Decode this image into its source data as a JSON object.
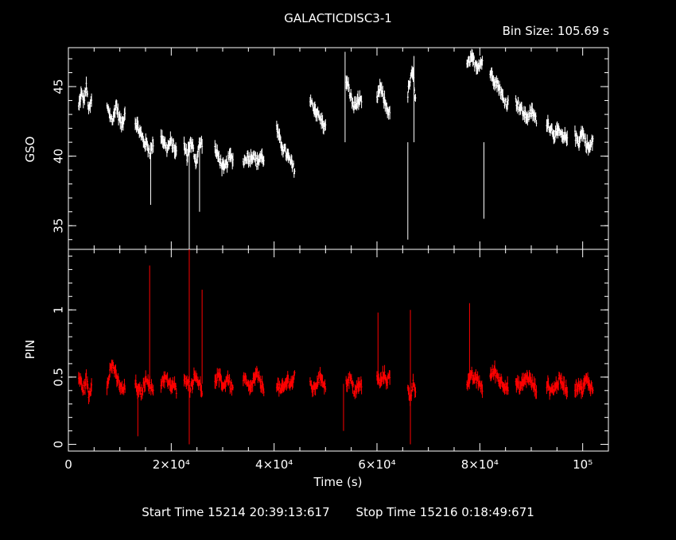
{
  "title": "GALACTICDISC3-1",
  "bin_size": "Bin Size: 105.69 s",
  "footer": {
    "start": "Start Time 15214 20:39:13:617",
    "stop": "Stop Time 15216  0:18:49:671"
  },
  "colors": {
    "background": "#000000",
    "axes": "#ffffff",
    "gso": "#ffffff",
    "pin": "#ff0000"
  },
  "chart_data": [
    {
      "panel": "top",
      "type": "scatter",
      "ylabel": "GSO",
      "xlim": [
        0,
        105000
      ],
      "ylim": [
        33.3,
        47.8
      ],
      "yticks": [
        35,
        40,
        45
      ],
      "color": "#ffffff",
      "error_bars": true,
      "segments": [
        {
          "x0": 2000,
          "x1": 4500,
          "y": [
            43.5,
            44.5,
            44.0,
            45.0,
            43.2,
            44.0
          ]
        },
        {
          "x0": 7500,
          "x1": 11000,
          "y": [
            43.5,
            43.0,
            42.5,
            43.8,
            42.8,
            42.2,
            43.2
          ]
        },
        {
          "x0": 13000,
          "x1": 16500,
          "y": [
            42.5,
            42.0,
            41.5,
            41.0,
            40.8,
            40.2,
            41.0
          ]
        },
        {
          "x0": 18000,
          "x1": 21000,
          "y": [
            41.5,
            41.0,
            40.5,
            41.0,
            40.8,
            40.2
          ]
        },
        {
          "x0": 22500,
          "x1": 26000,
          "y": [
            40.8,
            40.0,
            41.0,
            40.5,
            39.5,
            40.8,
            41.0
          ]
        },
        {
          "x0": 28500,
          "x1": 32000,
          "y": [
            40.5,
            40.0,
            39.5,
            39.0,
            39.5,
            40.0,
            39.8
          ]
        },
        {
          "x0": 34000,
          "x1": 38000,
          "y": [
            39.5,
            40.0,
            39.8,
            40.2,
            39.5,
            40.0,
            39.8
          ]
        },
        {
          "x0": 40500,
          "x1": 44000,
          "y": [
            42.0,
            41.0,
            40.5,
            40.0,
            39.5,
            39.0
          ]
        },
        {
          "x0": 47000,
          "x1": 50000,
          "y": [
            44.0,
            43.5,
            43.0,
            42.5,
            42.0
          ]
        },
        {
          "x0": 54000,
          "x1": 57000,
          "y": [
            45.5,
            44.5,
            43.5,
            44.0,
            43.8
          ]
        },
        {
          "x0": 60000,
          "x1": 62500,
          "y": [
            44.0,
            45.0,
            44.2,
            43.5,
            43.0
          ]
        },
        {
          "x0": 66000,
          "x1": 67500,
          "y": [
            44.5,
            45.5,
            46.0,
            44.0
          ]
        },
        {
          "x0": 77500,
          "x1": 80500,
          "y": [
            46.5,
            47.0,
            46.5,
            46.8
          ]
        },
        {
          "x0": 82000,
          "x1": 85500,
          "y": [
            46.0,
            45.5,
            45.0,
            44.0,
            43.8
          ]
        },
        {
          "x0": 87000,
          "x1": 91000,
          "y": [
            44.0,
            43.5,
            43.0,
            42.8,
            43.2,
            42.5
          ]
        },
        {
          "x0": 93000,
          "x1": 97000,
          "y": [
            42.5,
            42.0,
            41.5,
            41.8,
            41.2,
            41.5
          ]
        },
        {
          "x0": 98500,
          "x1": 102000,
          "y": [
            41.5,
            41.0,
            41.8,
            41.0,
            40.5,
            41.2
          ]
        }
      ],
      "spikes": [
        {
          "x": 16000,
          "y_low": 36.5
        },
        {
          "x": 23500,
          "y_low": 33.3
        },
        {
          "x": 25500,
          "y_low": 36.0
        },
        {
          "x": 66000,
          "y_low": 34.0
        },
        {
          "x": 80800,
          "y_low": 35.5
        },
        {
          "x": 53800,
          "y_high": 47.5
        },
        {
          "x": 67200,
          "y_high": 47.2
        }
      ]
    },
    {
      "panel": "bottom",
      "type": "scatter",
      "ylabel": "PIN",
      "xlabel": "Time (s)",
      "xlim": [
        0,
        105000
      ],
      "ylim": [
        -0.05,
        1.45
      ],
      "yticks": [
        0,
        0.5,
        1
      ],
      "ytick_labels": [
        "0",
        "0.5",
        "1"
      ],
      "xticks": [
        20000,
        40000,
        60000,
        80000,
        100000
      ],
      "xtick_labels": [
        "2×10⁴",
        "4×10⁴",
        "6×10⁴",
        "8×10⁴",
        "10⁵"
      ],
      "color": "#ff0000",
      "error_bars": true,
      "segments": [
        {
          "x0": 2000,
          "x1": 4500,
          "y": [
            0.5,
            0.45,
            0.4,
            0.5,
            0.35,
            0.45
          ]
        },
        {
          "x0": 7500,
          "x1": 11000,
          "y": [
            0.45,
            0.55,
            0.6,
            0.5,
            0.45,
            0.4,
            0.42
          ]
        },
        {
          "x0": 13000,
          "x1": 16500,
          "y": [
            0.45,
            0.4,
            0.38,
            0.45,
            0.5,
            0.42,
            0.4
          ]
        },
        {
          "x0": 18000,
          "x1": 21000,
          "y": [
            0.45,
            0.5,
            0.48,
            0.42,
            0.45,
            0.4
          ]
        },
        {
          "x0": 22500,
          "x1": 26000,
          "y": [
            0.45,
            0.5,
            0.42,
            0.48,
            0.52,
            0.45,
            0.4
          ]
        },
        {
          "x0": 28500,
          "x1": 32000,
          "y": [
            0.45,
            0.5,
            0.48,
            0.42,
            0.5,
            0.45,
            0.4
          ]
        },
        {
          "x0": 34000,
          "x1": 38000,
          "y": [
            0.5,
            0.45,
            0.4,
            0.48,
            0.52,
            0.45,
            0.42
          ]
        },
        {
          "x0": 40500,
          "x1": 44000,
          "y": [
            0.45,
            0.4,
            0.42,
            0.48,
            0.45,
            0.5
          ]
        },
        {
          "x0": 47000,
          "x1": 50000,
          "y": [
            0.45,
            0.4,
            0.48,
            0.5,
            0.42
          ]
        },
        {
          "x0": 54000,
          "x1": 57000,
          "y": [
            0.45,
            0.5,
            0.4,
            0.42,
            0.45
          ]
        },
        {
          "x0": 60000,
          "x1": 62500,
          "y": [
            0.5,
            0.45,
            0.52,
            0.48,
            0.5
          ]
        },
        {
          "x0": 66000,
          "x1": 67500,
          "y": [
            0.4,
            0.35,
            0.45,
            0.42
          ]
        },
        {
          "x0": 77500,
          "x1": 80500,
          "y": [
            0.45,
            0.5,
            0.48,
            0.42
          ]
        },
        {
          "x0": 82000,
          "x1": 85500,
          "y": [
            0.5,
            0.55,
            0.48,
            0.45,
            0.42
          ]
        },
        {
          "x0": 87000,
          "x1": 91000,
          "y": [
            0.45,
            0.42,
            0.48,
            0.5,
            0.45,
            0.4
          ]
        },
        {
          "x0": 93000,
          "x1": 97000,
          "y": [
            0.45,
            0.4,
            0.42,
            0.48,
            0.45,
            0.4
          ]
        },
        {
          "x0": 98500,
          "x1": 102000,
          "y": [
            0.42,
            0.45,
            0.4,
            0.48,
            0.45,
            0.4
          ]
        }
      ],
      "spikes": [
        {
          "x": 15800,
          "y_high": 1.33
        },
        {
          "x": 23500,
          "y_high": 1.45,
          "y_low": 0.0
        },
        {
          "x": 26000,
          "y_high": 1.15
        },
        {
          "x": 60200,
          "y_high": 0.98
        },
        {
          "x": 66500,
          "y_high": 1.0,
          "y_low": 0.0
        },
        {
          "x": 78000,
          "y_high": 1.05
        },
        {
          "x": 13500,
          "y_low": 0.06
        },
        {
          "x": 53500,
          "y_low": 0.1
        }
      ]
    }
  ]
}
